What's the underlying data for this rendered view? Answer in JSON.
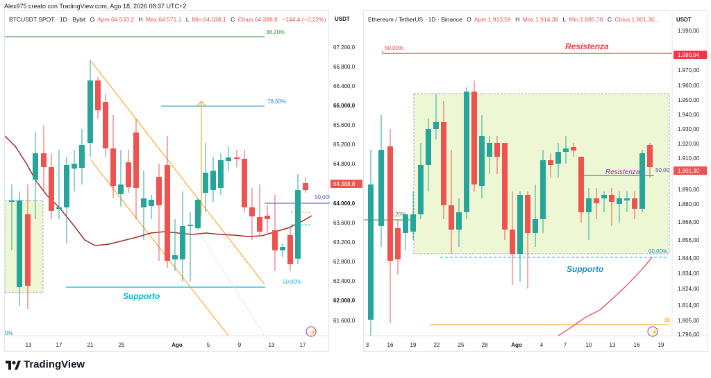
{
  "credit": "Alex975 creato con TradingView.com, Ago 18, 2026 08:37 UTC+2",
  "brand": "TradingView",
  "left": {
    "legend": {
      "symbol": "BTCUSDT SPOT · 1D · Bybit",
      "o_label": "O",
      "o": "Aper.64.533,2",
      "h_label": "H",
      "h": "Max.64.571,1",
      "l_label": "L",
      "l": "Min.64.038,1",
      "c_label": "C",
      "c": "Chius.64.388,8",
      "chg": "−144,4 (−0,22%)"
    },
    "currency": "USDT",
    "price_ticks": [
      "67.200,0",
      "66.800,0",
      "66.400,0",
      "66.000,0",
      "65.600,0",
      "65.200,0",
      "64.800,0",
      "64.000,0",
      "63.600,0",
      "63.200,0",
      "62.800,0",
      "62.400,0",
      "62.000,0",
      "61.600,0"
    ],
    "bold_ticks": [
      "66.000,0",
      "64.000,0",
      "62.000,0"
    ],
    "last_price": "64.388,8",
    "time_ticks": [
      "13",
      "17",
      "21",
      "25",
      "Ago",
      "5",
      "9",
      "13",
      "17"
    ],
    "fib": {
      "top": "38,20%",
      "mid": "78,60%",
      "half": "50,00%",
      "low": "50,00%",
      "edge": "0%"
    },
    "support_label": "Supporto"
  },
  "right": {
    "legend": {
      "symbol": "Ethereum / TetherUS · 1D · Binance",
      "o_label": "O",
      "o": "Aper.1.913,59",
      "h_label": "H",
      "h": "Max.1.914,38",
      "l_label": "L",
      "l": "Min.1.885,78",
      "c_label": "C",
      "c": "Chius.1.901,30..."
    },
    "currency": "USDT",
    "price_ticks": [
      "1.990,00",
      "1.970,00",
      "1.960,00",
      "1.950,00",
      "1.940,00",
      "1.930,00",
      "1.920,00",
      "1.910,00",
      "1.890,00",
      "1.880,00",
      "1.868,00",
      "1.856,00",
      "1.844,00",
      "1.834,00",
      "1.824,00",
      "1.814,00",
      "1.805,00",
      "1.796,00"
    ],
    "resistance_price": "1.980,94",
    "last_price": "1.901,30",
    "time_ticks": [
      "3",
      "16",
      "19",
      "22",
      "25",
      "28",
      "Ago",
      "4",
      "7",
      "10",
      "13",
      "16",
      "19"
    ],
    "fib": {
      "top": "50,00%",
      "half": "50,00",
      "mid": "38,20%",
      "low": "00,00%",
      "edge": "38"
    },
    "resistance_label": "Resistenza",
    "resistance_label_2": "Resistenza",
    "support_label": "Supporto"
  },
  "colors": {
    "up": "#26a69a",
    "down": "#ef5350",
    "ma": "#a52a2a",
    "fib_green": "#388e3c",
    "fib_blue": "#1f8fc2",
    "support": "#00bcd4",
    "resistance": "#f23645",
    "channel": "#ff9800",
    "zone": "#eef7d4",
    "purple": "#9c27b0"
  }
}
